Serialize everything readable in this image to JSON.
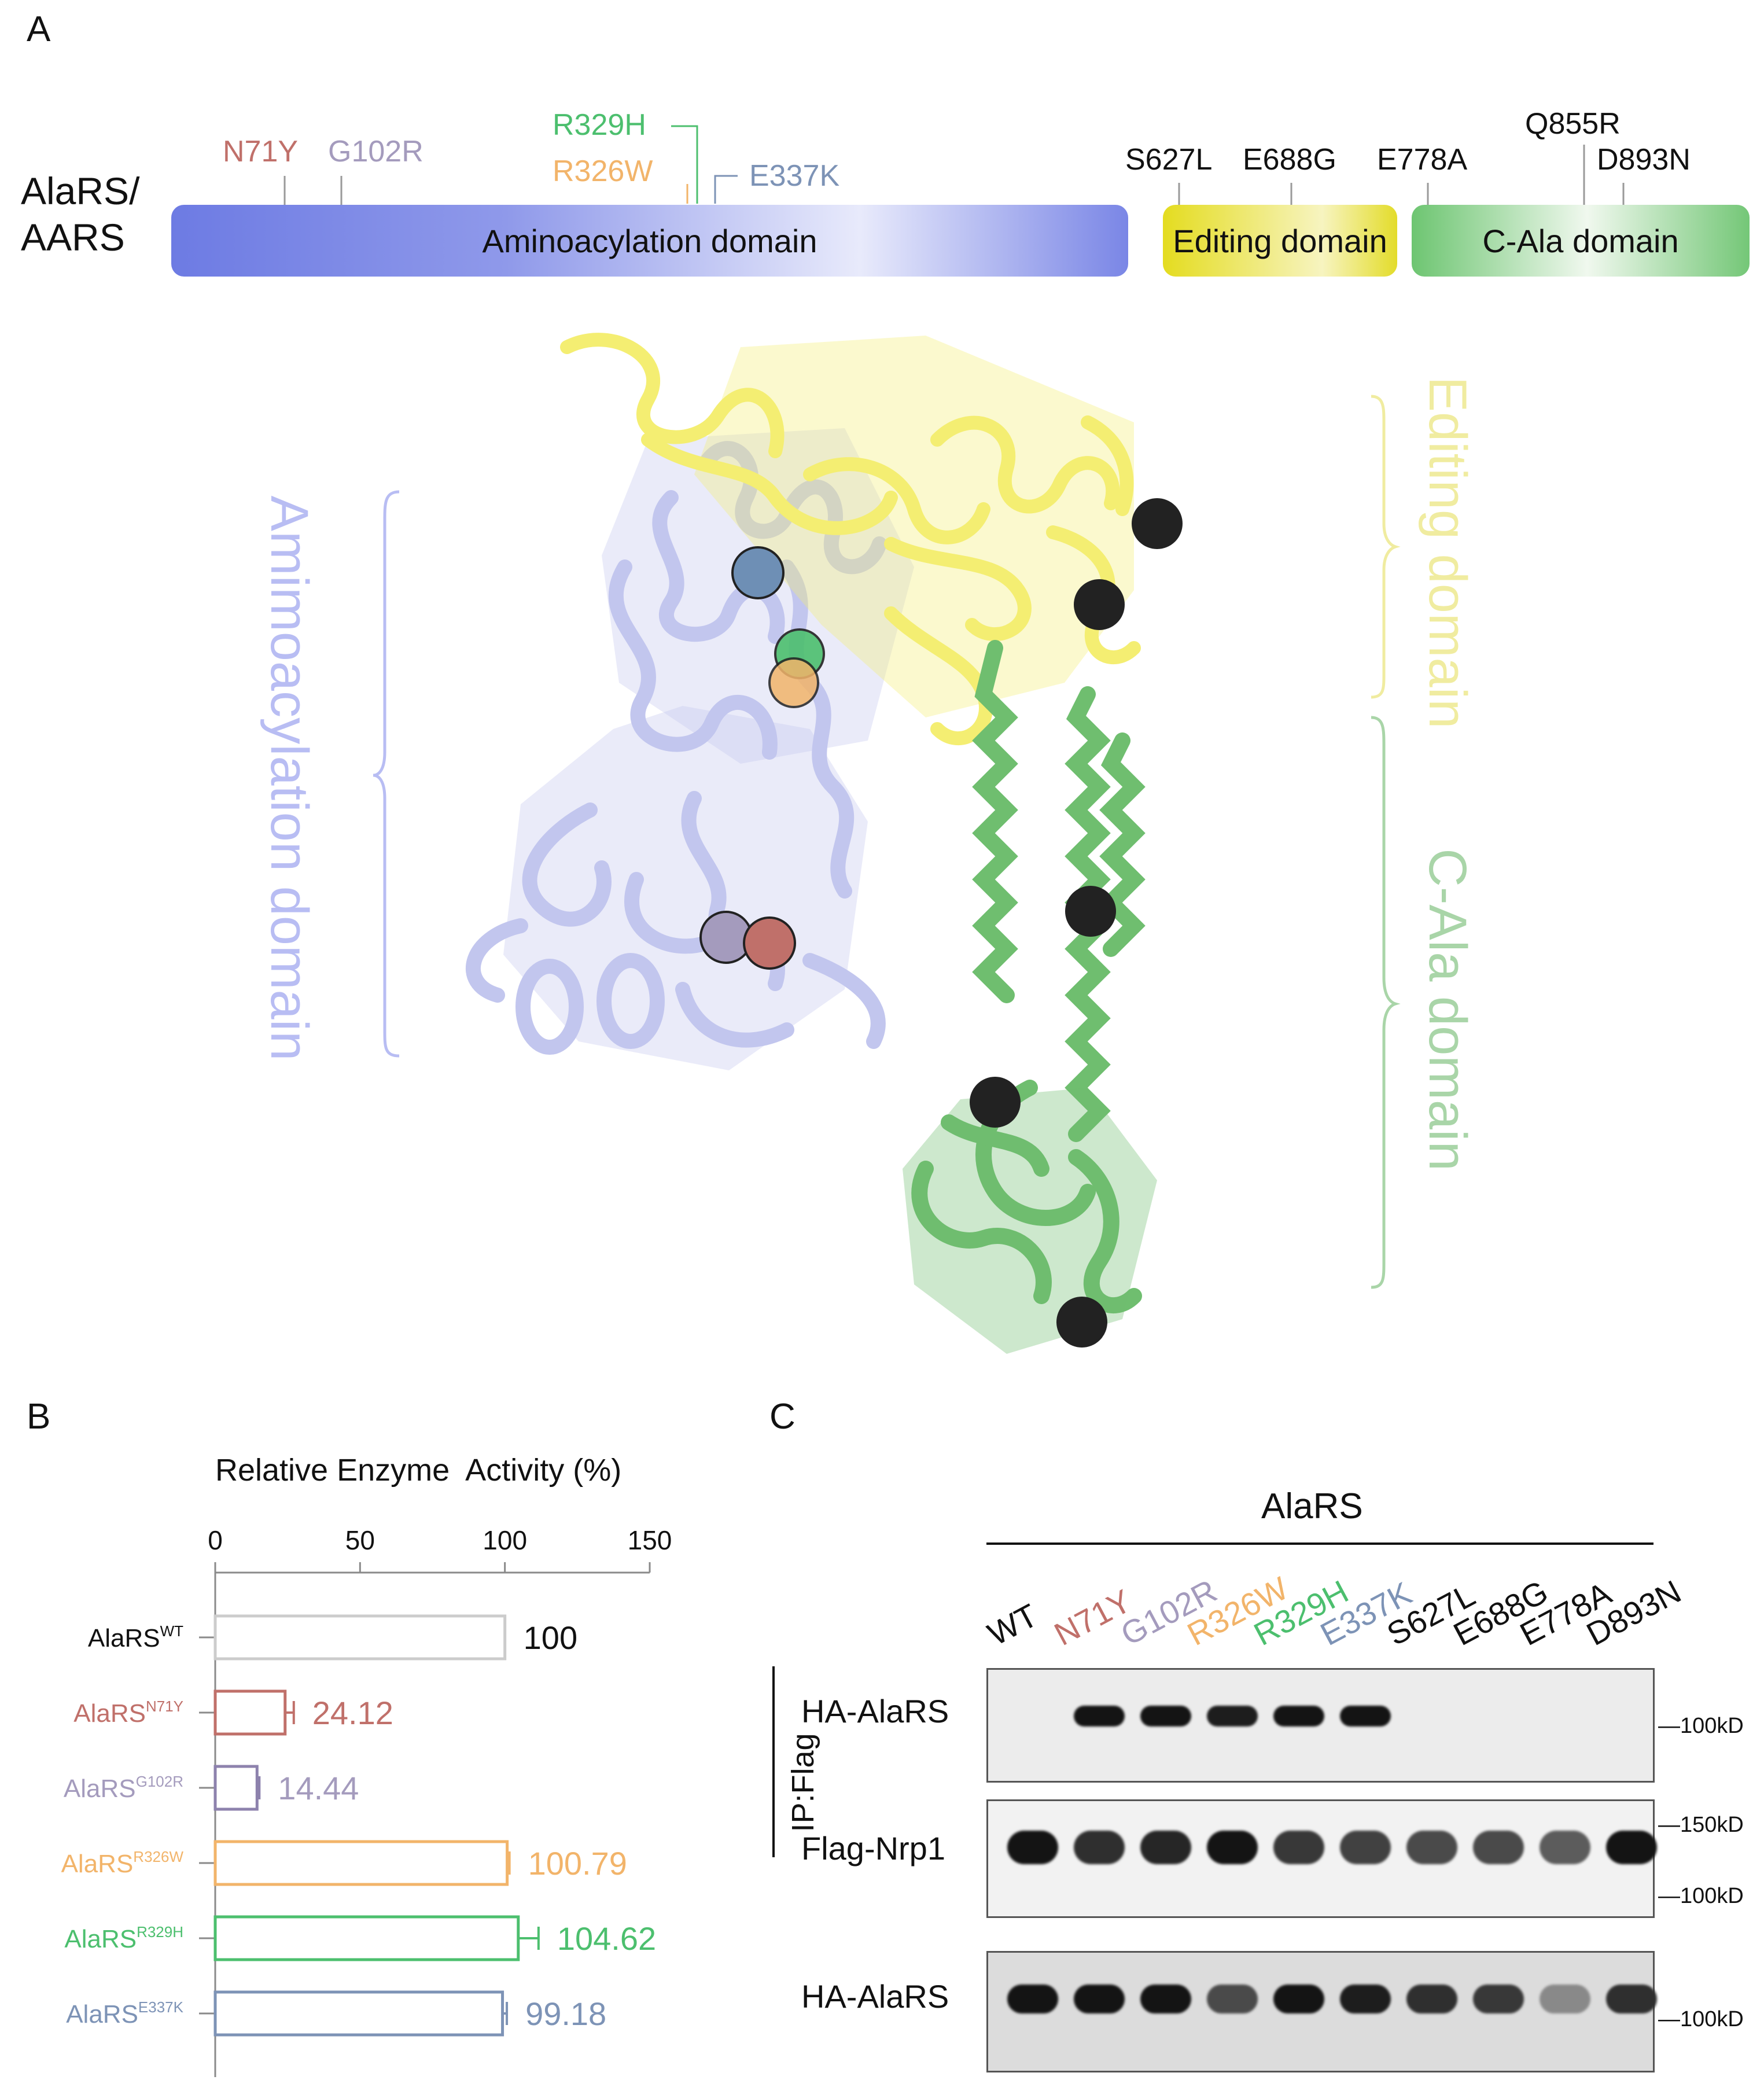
{
  "panels": {
    "a": "A",
    "b": "B",
    "c": "C"
  },
  "protein_label": [
    "AlaRS/",
    "AARS"
  ],
  "mutations": [
    {
      "label": "N71Y",
      "color": "#c0706a"
    },
    {
      "label": "G102R",
      "color": "#a49bbd"
    },
    {
      "label": "R329H",
      "color": "#4cbf6e"
    },
    {
      "label": "R326W",
      "color": "#f2b46a"
    },
    {
      "label": "E337K",
      "color": "#7d93b6"
    },
    {
      "label": "S627L",
      "color": "#111111"
    },
    {
      "label": "E688G",
      "color": "#111111"
    },
    {
      "label": "E778A",
      "color": "#111111"
    },
    {
      "label": "Q855R",
      "color": "#111111"
    },
    {
      "label": "D893N",
      "color": "#111111"
    }
  ],
  "domains": [
    {
      "label": "Aminoacylation domain",
      "color": "#7a86e6"
    },
    {
      "label": "Editing domain",
      "color": "#e3dc2a"
    },
    {
      "label": "C-Ala domain",
      "color": "#74c777"
    }
  ],
  "structure": {
    "labels": [
      {
        "text": "Amimoacylation domain",
        "color": "#b8bdf3"
      },
      {
        "text": "Editing domain",
        "color": "#f0eca0"
      },
      {
        "text": "C-Ala domain",
        "color": "#a9d5a8"
      }
    ]
  },
  "chart_data": {
    "type": "bar",
    "orientation": "horizontal",
    "title": "Relative Enzyme  Activity (%)",
    "xlim": [
      0,
      150
    ],
    "ticks": [
      "0",
      "50",
      "100",
      "150"
    ],
    "bars": [
      {
        "label": "AlaRS",
        "sup": "WT",
        "value": 100,
        "text": "100",
        "error": 0,
        "color": "#111111",
        "stroke": "#cccccc"
      },
      {
        "label": "AlaRS",
        "sup": "N71Y",
        "value": 24.12,
        "text": "24.12",
        "error": 3,
        "color": "#c0706a",
        "stroke": "#c0706a"
      },
      {
        "label": "AlaRS",
        "sup": "G102R",
        "value": 14.44,
        "text": "14.44",
        "error": 0.8,
        "color": "#a49bbd",
        "stroke": "#8d82ad"
      },
      {
        "label": "AlaRS",
        "sup": "R326W",
        "value": 100.79,
        "text": "100.79",
        "error": 0.8,
        "color": "#f2b46a",
        "stroke": "#f2b46a"
      },
      {
        "label": "AlaRS",
        "sup": "R329H",
        "value": 104.62,
        "text": "104.62",
        "error": 7,
        "color": "#4cbf6e",
        "stroke": "#4cbf6e"
      },
      {
        "label": "AlaRS",
        "sup": "E337K",
        "value": 99.18,
        "text": "99.18",
        "error": 1.5,
        "color": "#7d93b6",
        "stroke": "#7d93b6"
      }
    ]
  },
  "western": {
    "header": "AlaRS",
    "lanes": [
      {
        "label": "WT",
        "color": "#111111"
      },
      {
        "label": "N71Y",
        "color": "#c0706a"
      },
      {
        "label": "G102R",
        "color": "#a49bbd"
      },
      {
        "label": "R326W",
        "color": "#f2b46a"
      },
      {
        "label": "R329H",
        "color": "#4cbf6e"
      },
      {
        "label": "E337K",
        "color": "#7d93b6"
      },
      {
        "label": "S627L",
        "color": "#111111"
      },
      {
        "label": "E688G",
        "color": "#111111"
      },
      {
        "label": "E778A",
        "color": "#111111"
      },
      {
        "label": "D893N",
        "color": "#111111"
      }
    ],
    "ip_label": "IP:Flag",
    "blots": [
      {
        "name": "HA-AlaRS",
        "markers": [
          "100kD"
        ],
        "intensity": [
          0,
          1,
          1,
          0.95,
          1,
          1,
          0,
          0,
          0,
          0
        ]
      },
      {
        "name": "Flag-Nrp1",
        "markers": [
          "150kD",
          "100kD"
        ],
        "intensity": [
          1,
          0.85,
          0.9,
          1,
          0.8,
          0.75,
          0.7,
          0.7,
          0.6,
          1
        ]
      },
      {
        "name": "HA-AlaRS",
        "markers": [
          "100kD"
        ],
        "intensity": [
          1,
          1,
          1,
          0.7,
          1,
          0.95,
          0.85,
          0.8,
          0.35,
          0.85
        ]
      }
    ]
  }
}
